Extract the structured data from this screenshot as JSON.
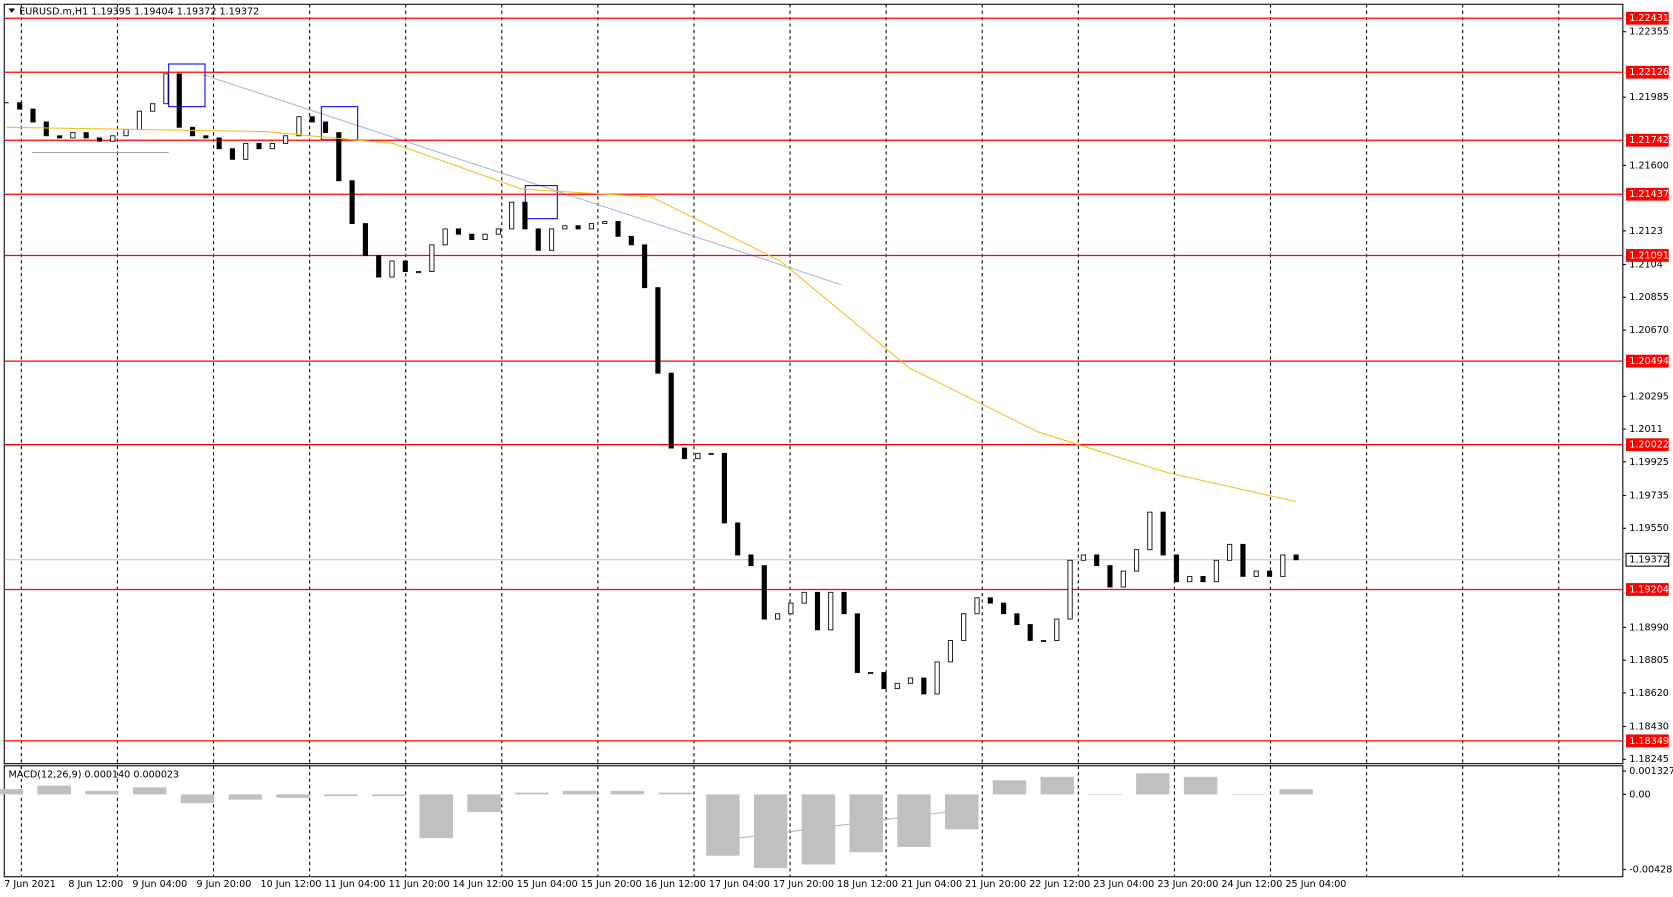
{
  "chart_data": {
    "type": "candlestick",
    "header": "EURUSD.m,H1 1.19395 1.19404 1.19372 1.19372",
    "x_labels": [
      "7 Jun 2021",
      "8 Jun 12:00",
      "9 Jun 04:00",
      "9 Jun 20:00",
      "10 Jun 12:00",
      "11 Jun 04:00",
      "11 Jun 20:00",
      "14 Jun 12:00",
      "15 Jun 04:00",
      "15 Jun 20:00",
      "16 Jun 12:00",
      "17 Jun 04:00",
      "17 Jun 20:00",
      "18 Jun 12:00",
      "21 Jun 04:00",
      "21 Jun 20:00",
      "22 Jun 12:00",
      "23 Jun 04:00",
      "23 Jun 20:00",
      "24 Jun 12:00",
      "25 Jun 04:00"
    ],
    "closes": [
      1.21954,
      1.21918,
      1.21845,
      1.21767,
      1.21755,
      1.21785,
      1.21755,
      1.21736,
      1.21767,
      1.21803,
      1.21906,
      1.21948,
      1.22117,
      1.21815,
      1.21767,
      1.21755,
      1.21694,
      1.21634,
      1.21724,
      1.21694,
      1.21724,
      1.21767,
      1.21875,
      1.21845,
      1.21785,
      1.21513,
      1.21271,
      1.2109,
      1.20969,
      1.2106,
      1.21,
      1.21,
      1.21151,
      1.21241,
      1.21211,
      1.21181,
      1.21211,
      1.21241,
      1.21392,
      1.21241,
      1.2112,
      1.21241,
      1.21259,
      1.21241,
      1.21271,
      1.21283,
      1.21199,
      1.21151,
      1.20909,
      1.20426,
      1.20003,
      1.19943,
      1.19973,
      1.19973,
      1.1958,
      1.19399,
      1.19339,
      1.19037,
      1.19067,
      1.19127,
      1.19188,
      1.18976,
      1.19188,
      1.19067,
      1.18735,
      1.18735,
      1.18644,
      1.18674,
      1.18704,
      1.18614,
      1.18795,
      1.18916,
      1.19067,
      1.19157,
      1.19127,
      1.19067,
      1.19006,
      1.18916,
      1.18916,
      1.19037,
      1.19369,
      1.19399,
      1.19339,
      1.19218,
      1.19308,
      1.19429,
      1.19641,
      1.19399,
      1.19248,
      1.19278,
      1.19248,
      1.19369,
      1.19459,
      1.19278,
      1.19308,
      1.19278,
      1.19399,
      1.19372
    ],
    "moving_average": {
      "color": "#f0c020",
      "values": [
        1.21815,
        1.21803,
        1.21791,
        1.21724,
        1.21465,
        1.21422,
        1.2106,
        1.20456,
        1.20094,
        1.19864,
        1.19701
      ]
    },
    "ylim": [
      1.1822,
      1.2251
    ],
    "yticks": [
      1.22355,
      1.21985,
      {
        "value": 1.216,
        "label": "1.21600"
      },
      1.2123,
      1.2104,
      1.20855,
      {
        "value": 1.2067,
        "label": "1.20670"
      },
      1.20295,
      1.2011,
      1.19925,
      1.19735,
      {
        "value": 1.1955,
        "label": "1.19550"
      },
      {
        "value": 1.1899,
        "label": "1.18990"
      },
      1.18805,
      {
        "value": 1.1862,
        "label": "1.18620"
      },
      {
        "value": 1.1843,
        "label": "1.18430"
      },
      1.18245
    ],
    "levels": {
      "color": "#ff0000",
      "values": [
        1.22431,
        1.22126,
        1.21742,
        1.21437,
        1.21091,
        1.20494,
        1.20022,
        1.19204,
        1.18349
      ]
    },
    "current_price": 1.19372,
    "macd": {
      "title": "MACD(12,26,9) 0.000140 0.000023",
      "color": "#c0c0c0",
      "values": [
        0.0003,
        0.0005,
        0.0002,
        0.0004,
        -0.0005,
        -0.0003,
        -0.0002,
        -0.0001,
        -0.0001,
        -0.0025,
        -0.001,
        0.0001,
        0.0002,
        0.0002,
        0.0001,
        -0.0035,
        -0.0042,
        -0.004,
        -0.0033,
        -0.003,
        -0.002,
        0.0008,
        0.001,
        0,
        0.0012,
        0.001,
        0,
        0.0003
      ],
      "ylim": [
        -0.0047,
        0.00163
      ],
      "yticks": [
        0.001327,
        {
          "value": 0,
          "label": "0.00"
        },
        -0.004281
      ]
    }
  }
}
